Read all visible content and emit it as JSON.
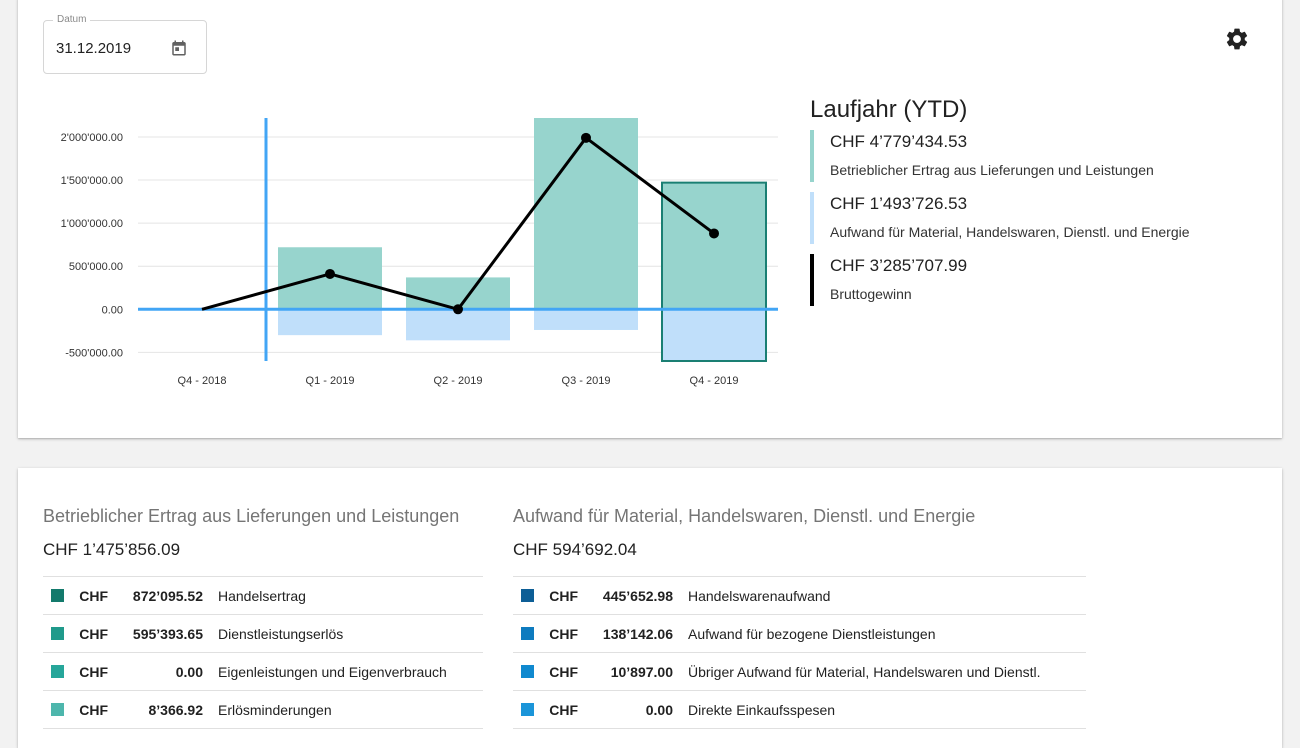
{
  "filter": {
    "date_label": "Datum",
    "date_value": "31.12.2019"
  },
  "icons": {
    "calendar": "calendar-icon",
    "settings": "gear-icon"
  },
  "chart_data": {
    "type": "bar",
    "categories": [
      "Q4 - 2018",
      "Q1 - 2019",
      "Q2 - 2019",
      "Q3 - 2019",
      "Q4 - 2019"
    ],
    "series": [
      {
        "type": "bar",
        "color": "#97d4cd",
        "values": [
          0,
          720000,
          370000,
          2220000,
          1470000
        ]
      },
      {
        "type": "bar",
        "color": "#c0dffa",
        "values": [
          0,
          -300000,
          -360000,
          -240000,
          -600000
        ]
      },
      {
        "type": "line",
        "color": "#000000",
        "values": [
          0,
          410000,
          0,
          1990000,
          880000
        ]
      }
    ],
    "y_ticks": [
      "2'000'000.00",
      "1'500'000.00",
      "1'000'000.00",
      "500'000.00",
      "0.00",
      "-500'000.00"
    ],
    "y_tick_values": [
      2000000,
      1500000,
      1000000,
      500000,
      0,
      -500000
    ],
    "ylim": [
      -600000,
      2220000
    ],
    "selected_category": "Q4 - 2019",
    "accent_color": "#42a5f5",
    "grid": true
  },
  "legend": {
    "title": "Laufjahr (YTD)",
    "items": [
      {
        "amount": "CHF 4’779’434.53",
        "desc": "Betrieblicher Ertrag aus Lieferungen und Leistungen",
        "color": "#97d4cd"
      },
      {
        "amount": "CHF 1’493’726.53",
        "desc": "Aufwand für Material, Handelswaren, Dienstl. und Energie",
        "color": "#c0dffa"
      },
      {
        "amount": "CHF 3’285’707.99",
        "desc": "Bruttogewinn",
        "color": "#000000"
      }
    ]
  },
  "revenue": {
    "title": "Betrieblicher Ertrag aus Lieferungen und Leistungen",
    "total": "CHF 1’475’856.09",
    "rows": [
      {
        "color": "#137a6c",
        "currency": "CHF",
        "amount": "872’095.52",
        "label": "Handelsertrag"
      },
      {
        "color": "#209a8b",
        "currency": "CHF",
        "amount": "595’393.65",
        "label": "Dienstleistungserlös"
      },
      {
        "color": "#26a69a",
        "currency": "CHF",
        "amount": "0.00",
        "label": "Eigenleistungen und Eigenverbrauch"
      },
      {
        "color": "#4db6ac",
        "currency": "CHF",
        "amount": "8’366.92",
        "label": "Erlösminderungen"
      }
    ]
  },
  "expense": {
    "title": "Aufwand für Material, Handelswaren, Dienstl. und Energie",
    "total": "CHF 594’692.04",
    "rows": [
      {
        "color": "#0d5e96",
        "currency": "CHF",
        "amount": "445’652.98",
        "label": "Handelswarenaufwand"
      },
      {
        "color": "#0e7bbf",
        "currency": "CHF",
        "amount": "138’142.06",
        "label": "Aufwand für bezogene Dienstleistungen"
      },
      {
        "color": "#1089cf",
        "currency": "CHF",
        "amount": "10’897.00",
        "label": "Übriger Aufwand für Material, Handelswaren und Dienstl."
      },
      {
        "color": "#1b95d9",
        "currency": "CHF",
        "amount": "0.00",
        "label": "Direkte Einkaufsspesen"
      }
    ]
  }
}
